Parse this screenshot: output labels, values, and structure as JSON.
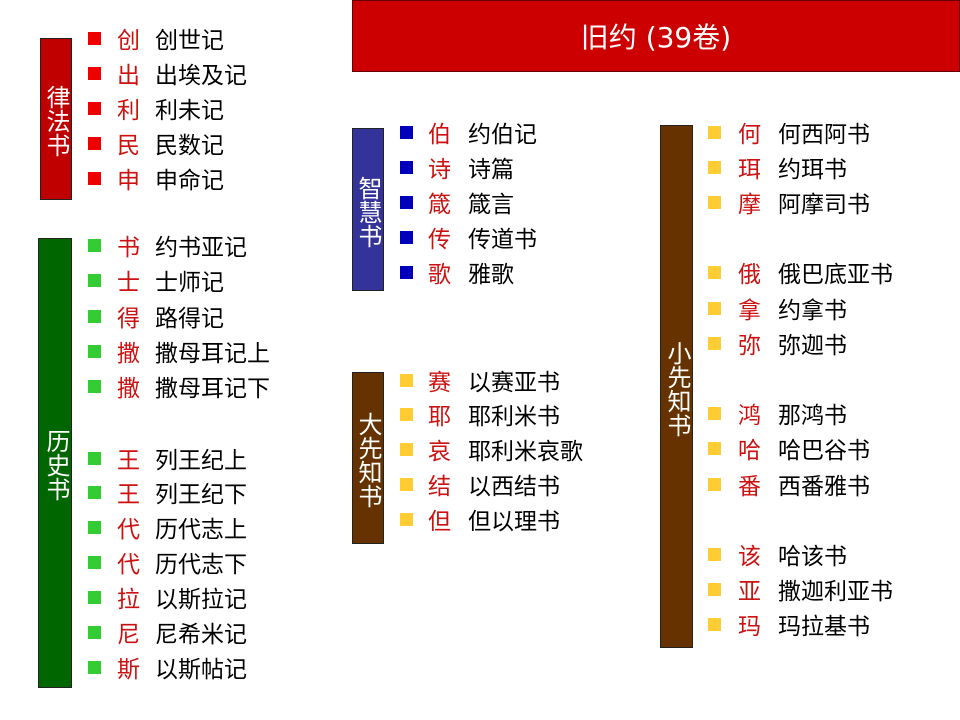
{
  "title": "旧约 (39卷)",
  "groups": [
    {
      "label": "律法书",
      "color": "#c00000",
      "bullet_color": "#ee0000",
      "books": [
        {
          "abbr": "创",
          "name": "创世记"
        },
        {
          "abbr": "出",
          "name": "出埃及记"
        },
        {
          "abbr": "利",
          "name": "利未记"
        },
        {
          "abbr": "民",
          "name": "民数记"
        },
        {
          "abbr": "申",
          "name": "申命记"
        }
      ]
    },
    {
      "label": "历史书",
      "color": "#006600",
      "bullet_color": "#33cc33",
      "books": [
        {
          "abbr": "书",
          "name": "约书亚记"
        },
        {
          "abbr": "士",
          "name": "士师记"
        },
        {
          "abbr": "得",
          "name": "路得记"
        },
        {
          "abbr": "撒",
          "name": "撒母耳记上"
        },
        {
          "abbr": "撒",
          "name": "撒母耳记下"
        },
        {
          "abbr": "王",
          "name": "列王纪上"
        },
        {
          "abbr": "王",
          "name": "列王纪下"
        },
        {
          "abbr": "代",
          "name": "历代志上"
        },
        {
          "abbr": "代",
          "name": "历代志下"
        },
        {
          "abbr": "拉",
          "name": "以斯拉记"
        },
        {
          "abbr": "尼",
          "name": "尼希米记"
        },
        {
          "abbr": "斯",
          "name": "以斯帖记"
        }
      ]
    },
    {
      "label": "智慧书",
      "color": "#333399",
      "bullet_color": "#0000bb",
      "books": [
        {
          "abbr": "伯",
          "name": "约伯记"
        },
        {
          "abbr": "诗",
          "name": "诗篇"
        },
        {
          "abbr": "箴",
          "name": "箴言"
        },
        {
          "abbr": "传",
          "name": "传道书"
        },
        {
          "abbr": "歌",
          "name": "雅歌"
        }
      ]
    },
    {
      "label": "大先知书",
      "color": "#663300",
      "bullet_color": "#ffcc33",
      "books": [
        {
          "abbr": "赛",
          "name": "以赛亚书"
        },
        {
          "abbr": "耶",
          "name": "耶利米书"
        },
        {
          "abbr": "哀",
          "name": "耶利米哀歌"
        },
        {
          "abbr": "结",
          "name": "以西结书"
        },
        {
          "abbr": "但",
          "name": "但以理书"
        }
      ]
    },
    {
      "label": "小先知书",
      "color": "#663300",
      "bullet_color": "#ffcc33",
      "books": [
        {
          "abbr": "何",
          "name": "何西阿书"
        },
        {
          "abbr": "珥",
          "name": "约珥书"
        },
        {
          "abbr": "摩",
          "name": "阿摩司书"
        },
        {
          "abbr": "俄",
          "name": "俄巴底亚书"
        },
        {
          "abbr": "拿",
          "name": "约拿书"
        },
        {
          "abbr": "弥",
          "name": "弥迦书"
        },
        {
          "abbr": "鸿",
          "name": "那鸿书"
        },
        {
          "abbr": "哈",
          "name": "哈巴谷书"
        },
        {
          "abbr": "番",
          "name": "西番雅书"
        },
        {
          "abbr": "该",
          "name": "哈该书"
        },
        {
          "abbr": "亚",
          "name": "撒迦利亚书"
        },
        {
          "abbr": "玛",
          "name": "玛拉基书"
        }
      ]
    }
  ]
}
